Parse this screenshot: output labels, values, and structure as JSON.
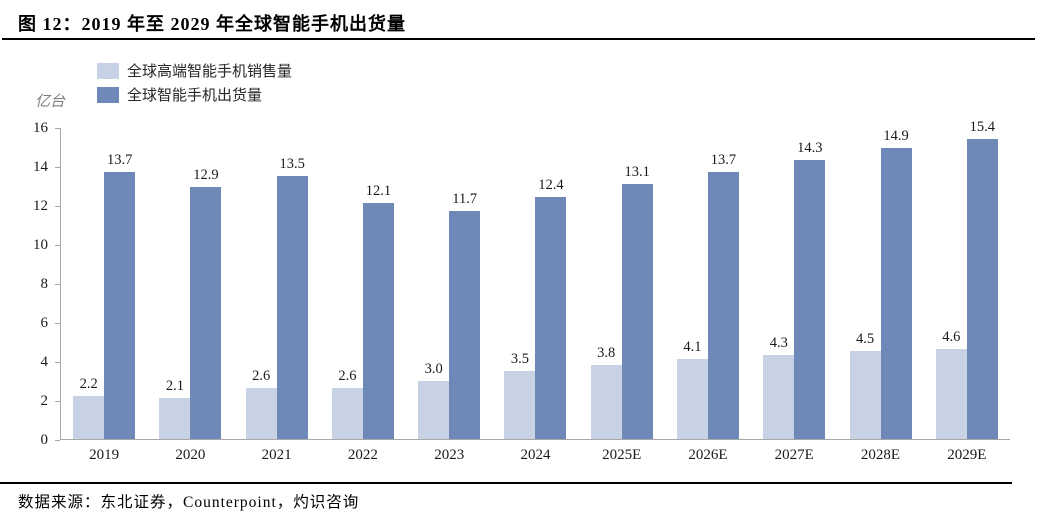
{
  "header": {
    "title": "图 12：2019 年至 2029 年全球智能手机出货量"
  },
  "y_axis": {
    "unit_label": "亿台"
  },
  "legend": [
    {
      "label": "全球高端智能手机销售量",
      "color": "#c7d2e5"
    },
    {
      "label": "全球智能手机出货量",
      "color": "#6e89b8"
    }
  ],
  "footer": {
    "source": "数据来源：东北证券，Counterpoint，灼识咨询"
  },
  "chart_data": {
    "type": "bar",
    "title": "2019 年至 2029 年全球智能手机出货量",
    "categories": [
      "2019",
      "2020",
      "2021",
      "2022",
      "2023",
      "2024",
      "2025E",
      "2026E",
      "2027E",
      "2028E",
      "2029E"
    ],
    "series": [
      {
        "name": "全球高端智能手机销售量",
        "color": "#c7d2e5",
        "values": [
          2.2,
          2.1,
          2.6,
          2.6,
          3.0,
          3.5,
          3.8,
          4.1,
          4.3,
          4.5,
          4.6
        ]
      },
      {
        "name": "全球智能手机出货量",
        "color": "#6e89b8",
        "values": [
          13.7,
          12.9,
          13.5,
          12.1,
          11.7,
          12.4,
          13.1,
          13.7,
          14.3,
          14.9,
          15.4
        ]
      }
    ],
    "xlabel": "",
    "ylabel": "亿台",
    "ylim": [
      0,
      16
    ],
    "yticks": [
      0,
      2,
      4,
      6,
      8,
      10,
      12,
      14,
      16
    ],
    "grid": false,
    "data_labels": true,
    "legend_position": "top-left"
  }
}
